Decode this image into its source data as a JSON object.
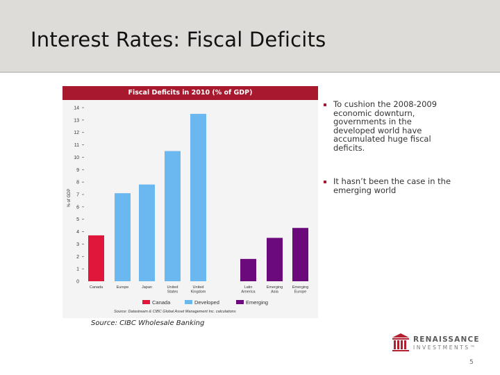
{
  "slide": {
    "title": "Interest Rates: Fiscal Deficits",
    "page_number": "5",
    "source_note": "Source: CIBC Wholesale Banking"
  },
  "bullets": [
    "To cushion the 2008-2009 economic downturn, governments in the developed world have accumulated huge fiscal deficits.",
    "It hasn’t been the case in the emerging world"
  ],
  "logo": {
    "name": "RENAISSANCE",
    "sub": "INVESTMENTS™"
  },
  "colors": {
    "accent": "#a8192e",
    "canada": "#e0163a",
    "developed": "#6bb7ef",
    "emerging": "#6b0a7a"
  },
  "chart_data": {
    "type": "bar",
    "title": "Fiscal Deficits in 2010 (% of GDP)",
    "ylabel": "% of GDP",
    "xlabel": "",
    "ylim": [
      0,
      14
    ],
    "yticks": [
      0,
      1,
      2,
      3,
      4,
      5,
      6,
      7,
      8,
      9,
      10,
      11,
      12,
      13,
      14
    ],
    "categories": [
      {
        "lines": [
          "Canada"
        ],
        "group": "Canada",
        "value": 3.7
      },
      {
        "lines": [
          "Europe"
        ],
        "group": "Developed",
        "value": 7.1
      },
      {
        "lines": [
          "Japan"
        ],
        "group": "Developed",
        "value": 7.8
      },
      {
        "lines": [
          "United",
          "States"
        ],
        "group": "Developed",
        "value": 10.5
      },
      {
        "lines": [
          "United",
          "Kingdom"
        ],
        "group": "Developed",
        "value": 13.5
      },
      {
        "lines": [
          "Latin",
          "America"
        ],
        "group": "Emerging",
        "value": 1.8
      },
      {
        "lines": [
          "Emerging",
          "Asia"
        ],
        "group": "Emerging",
        "value": 3.5
      },
      {
        "lines": [
          "Emerging",
          "Europe"
        ],
        "group": "Emerging",
        "value": 4.3
      }
    ],
    "legend": [
      {
        "name": "Canada",
        "color": "#e0163a"
      },
      {
        "name": "Developed",
        "color": "#6bb7ef"
      },
      {
        "name": "Emerging",
        "color": "#6b0a7a"
      }
    ],
    "source": "Source: Datastream & CIBC Global Asset Management Inc. calculations"
  }
}
